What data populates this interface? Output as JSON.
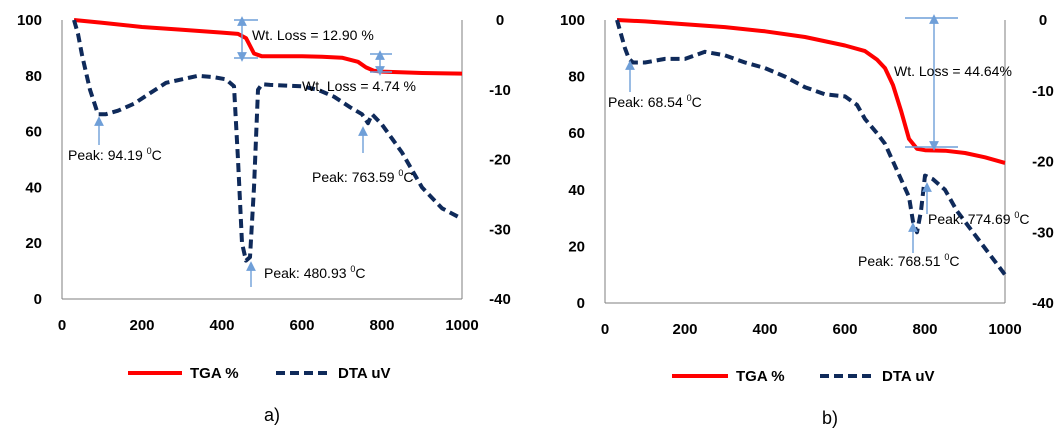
{
  "colors": {
    "tga": "#ff0000",
    "dta": "#0f2a5a",
    "arrow": "#6f9fd8",
    "axis": "#7f7f7f"
  },
  "chart_data": [
    {
      "type": "line",
      "caption": "a)",
      "xlim": [
        0,
        1000
      ],
      "xticks": [
        0,
        200,
        400,
        600,
        800,
        1000
      ],
      "ylim": [
        0,
        100
      ],
      "yticks": [
        0,
        20,
        40,
        60,
        80,
        100
      ],
      "y2lim": [
        -40,
        0
      ],
      "y2ticks": [
        0,
        -10,
        -20,
        -30,
        -40
      ],
      "grid": false,
      "legend_position": "bottom",
      "series": [
        {
          "name": "TGA %",
          "axis": "left",
          "style": "solid",
          "x": [
            30,
            100,
            200,
            300,
            400,
            440,
            460,
            480,
            500,
            600,
            650,
            700,
            740,
            760,
            780,
            800,
            900,
            1000
          ],
          "y": [
            100,
            99,
            97.5,
            96.5,
            95.5,
            95,
            93.5,
            88,
            87,
            87,
            86.8,
            86.5,
            85,
            83,
            81.8,
            81.5,
            81,
            80.8
          ]
        },
        {
          "name": "DTA uV",
          "axis": "right",
          "style": "dashed",
          "x": [
            30,
            40,
            50,
            70,
            90,
            110,
            140,
            180,
            220,
            260,
            300,
            340,
            380,
            410,
            430,
            440,
            450,
            460,
            470,
            480,
            490,
            500,
            520,
            560,
            600,
            640,
            680,
            720,
            750,
            765,
            775,
            800,
            850,
            900,
            950,
            1000
          ],
          "y": [
            0,
            -2,
            -5,
            -10,
            -13.5,
            -13.5,
            -13,
            -12,
            -10.5,
            -9,
            -8.5,
            -8,
            -8.2,
            -8.5,
            -9.5,
            -20,
            -32,
            -34.5,
            -34,
            -24,
            -10,
            -9.2,
            -9.3,
            -9.4,
            -9.5,
            -10,
            -11,
            -12.5,
            -13.5,
            -14.8,
            -13.5,
            -15,
            -19,
            -24,
            -27,
            -28.5
          ]
        }
      ],
      "annotations": [
        {
          "text": "Wt. Loss = 12.90 %"
        },
        {
          "text": "Wt. Loss = 4.74 %"
        },
        {
          "text": "Peak: 94.19",
          "sup": "0",
          "unit": "C"
        },
        {
          "text": "Peak: 480.93",
          "sup": "0",
          "unit": "C"
        },
        {
          "text": "Peak: 763.59",
          "sup": "0",
          "unit": "C"
        }
      ]
    },
    {
      "type": "line",
      "caption": "b)",
      "xlim": [
        0,
        1000
      ],
      "xticks": [
        0,
        200,
        400,
        600,
        800,
        1000
      ],
      "ylim": [
        0,
        100
      ],
      "yticks": [
        0,
        20,
        40,
        60,
        80,
        100
      ],
      "y2lim": [
        -40,
        0
      ],
      "y2ticks": [
        0,
        -10,
        -20,
        -30,
        -40
      ],
      "grid": false,
      "legend_position": "bottom",
      "series": [
        {
          "name": "TGA %",
          "axis": "left",
          "style": "solid",
          "x": [
            30,
            100,
            200,
            300,
            400,
            500,
            600,
            650,
            680,
            700,
            720,
            740,
            760,
            780,
            800,
            850,
            900,
            950,
            1000
          ],
          "y": [
            100,
            99.5,
            98.5,
            97.5,
            96,
            94,
            91,
            89,
            86,
            83,
            77,
            68,
            58,
            54.5,
            54,
            53.8,
            53,
            51.5,
            49.5
          ]
        },
        {
          "name": "DTA uV",
          "axis": "right",
          "style": "dashed",
          "x": [
            30,
            40,
            50,
            60,
            70,
            100,
            150,
            200,
            250,
            300,
            350,
            400,
            450,
            500,
            550,
            600,
            630,
            650,
            680,
            700,
            720,
            740,
            760,
            770,
            780,
            790,
            800,
            820,
            850,
            880,
            920,
            960,
            1000
          ],
          "y": [
            0,
            -2,
            -4,
            -5.5,
            -6,
            -6,
            -5.5,
            -5.5,
            -4.5,
            -5,
            -6,
            -6.8,
            -8,
            -9.5,
            -10.5,
            -10.8,
            -12,
            -14,
            -16,
            -17.5,
            -20,
            -22.5,
            -25,
            -28.5,
            -30,
            -27,
            -22,
            -22.5,
            -24,
            -27,
            -30,
            -33,
            -36
          ]
        }
      ],
      "annotations": [
        {
          "text": "Wt. Loss = 44.64%"
        },
        {
          "text": "Peak: 68.54",
          "sup": "0",
          "unit": "C"
        },
        {
          "text": "Peak: 768.51",
          "sup": "0",
          "unit": "C"
        },
        {
          "text": "Peak: 774.69",
          "sup": "0",
          "unit": "C"
        }
      ]
    }
  ]
}
